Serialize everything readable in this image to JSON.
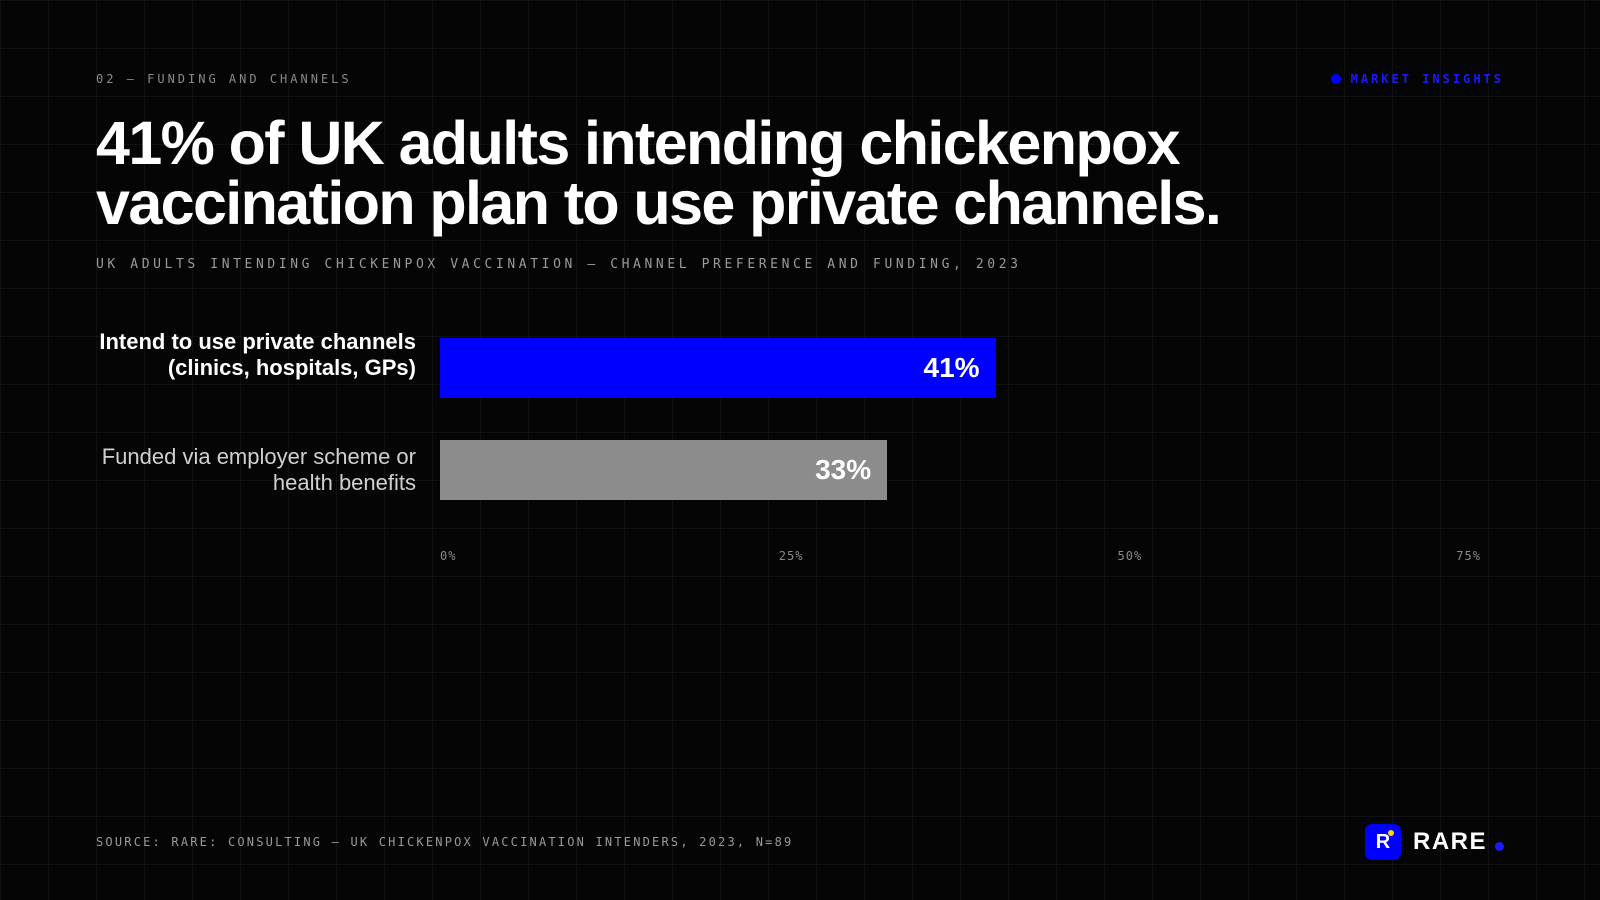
{
  "header": {
    "section_label": "02 — FUNDING AND CHANNELS",
    "tag_label": "MARKET INSIGHTS"
  },
  "headline": "41% of UK adults intending chickenpox vaccination plan to use private channels.",
  "subtitle": "UK ADULTS INTENDING CHICKENPOX VACCINATION — CHANNEL PREFERENCE AND FUNDING, 2023",
  "chart_data": {
    "type": "bar",
    "orientation": "horizontal",
    "categories": [
      "Intend to use private channels (clinics, hospitals, GPs)",
      "Funded via employer scheme or health benefits"
    ],
    "values": [
      41,
      33
    ],
    "value_labels": [
      "41%",
      "33%"
    ],
    "xlim": [
      0,
      75
    ],
    "ticks": [
      0,
      25,
      50,
      75
    ],
    "tick_labels": [
      "0%",
      "25%",
      "50%",
      "75%"
    ],
    "colors": [
      "#0000ff",
      "#8c8c8c"
    ],
    "grid": true
  },
  "footer": {
    "source": "SOURCE: RARE: CONSULTING — UK CHICKENPOX VACCINATION INTENDERS, 2023, N=89",
    "brand_mark": "R",
    "brand_name": "RARE"
  },
  "colors": {
    "accent": "#0000ff",
    "background": "#050505",
    "brand_spark": "#ffd400"
  }
}
